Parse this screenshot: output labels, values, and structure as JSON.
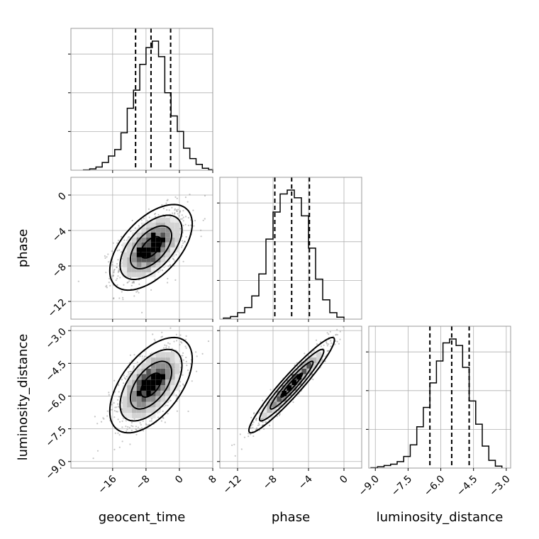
{
  "chart_data": {
    "type": "corner",
    "parameters": [
      "geocent_time",
      "phase",
      "luminosity_distance"
    ],
    "axes": {
      "geocent_time": {
        "label": "geocent_time",
        "range": [
          -26,
          8
        ],
        "ticks": [
          -16,
          -8,
          0,
          8
        ],
        "tick_labels": [
          "−16",
          "−8",
          "0",
          "8"
        ]
      },
      "phase": {
        "label": "phase",
        "range": [
          -14,
          2
        ],
        "ticks": [
          -12,
          -8,
          -4,
          0
        ],
        "tick_labels": [
          "−12",
          "−8",
          "−4",
          "0"
        ]
      },
      "luminosity_distance": {
        "label": "luminosity_distance",
        "range": [
          -9.3,
          -2.8
        ],
        "ticks": [
          -9.0,
          -7.5,
          -6.0,
          -4.5,
          -3.0
        ],
        "tick_labels": [
          "−9.0",
          "−7.5",
          "−6.0",
          "−4.5",
          "−3.0"
        ]
      }
    },
    "marginals": {
      "geocent_time": {
        "bin_edges": [
          -23,
          -21.5,
          -20,
          -18.5,
          -17,
          -15.5,
          -14,
          -12.5,
          -11,
          -9.5,
          -8,
          -6.5,
          -5,
          -3.5,
          -2,
          -0.5,
          1,
          2.5,
          4,
          5.5,
          7,
          8
        ],
        "counts": [
          0.2,
          1,
          2.5,
          6,
          11,
          16,
          29,
          48,
          62,
          82,
          95,
          100,
          88,
          60,
          42,
          30,
          17,
          9,
          4.5,
          1.5,
          0.4
        ],
        "quantiles": [
          -10.5,
          -6.8,
          -2.1
        ]
      },
      "phase": {
        "bin_edges": [
          -13.6,
          -12.8,
          -12,
          -11.2,
          -10.4,
          -9.6,
          -8.8,
          -8,
          -7.2,
          -6.4,
          -5.6,
          -4.8,
          -4,
          -3.2,
          -2.4,
          -1.6,
          -0.8,
          0
        ],
        "counts": [
          0.8,
          2,
          5,
          9,
          18,
          35,
          62,
          83,
          97,
          100,
          94,
          80,
          55,
          31,
          15,
          5,
          1.5
        ],
        "quantiles": [
          -7.8,
          -5.9,
          -3.9
        ]
      },
      "luminosity_distance": {
        "bin_edges": [
          -9.2,
          -8.9,
          -8.6,
          -8.3,
          -8.0,
          -7.7,
          -7.4,
          -7.1,
          -6.8,
          -6.5,
          -6.2,
          -5.9,
          -5.6,
          -5.3,
          -5.0,
          -4.7,
          -4.4,
          -4.1,
          -3.8,
          -3.5,
          -3.2
        ],
        "counts": [
          0.3,
          1,
          2,
          3,
          5,
          9,
          18,
          32,
          47,
          66,
          83,
          97,
          100,
          95,
          78,
          52,
          34,
          17,
          6,
          1.5
        ],
        "quantiles": [
          -6.5,
          -5.5,
          -4.7
        ]
      }
    },
    "pairs": [
      {
        "x": "geocent_time",
        "y": "phase",
        "center": [
          -6.8,
          -5.9
        ],
        "sigma": [
          4.3,
          2.1
        ],
        "correlation": 0.55
      },
      {
        "x": "geocent_time",
        "y": "luminosity_distance",
        "center": [
          -6.8,
          -5.5
        ],
        "sigma": [
          4.3,
          0.95
        ],
        "correlation": 0.55
      },
      {
        "x": "phase",
        "y": "luminosity_distance",
        "center": [
          -5.9,
          -5.5
        ],
        "sigma": [
          2.1,
          0.95
        ],
        "correlation": 0.95
      }
    ],
    "contour_levels_sigma": [
      0.5,
      1.0,
      1.5,
      2.0
    ],
    "grid": true
  }
}
